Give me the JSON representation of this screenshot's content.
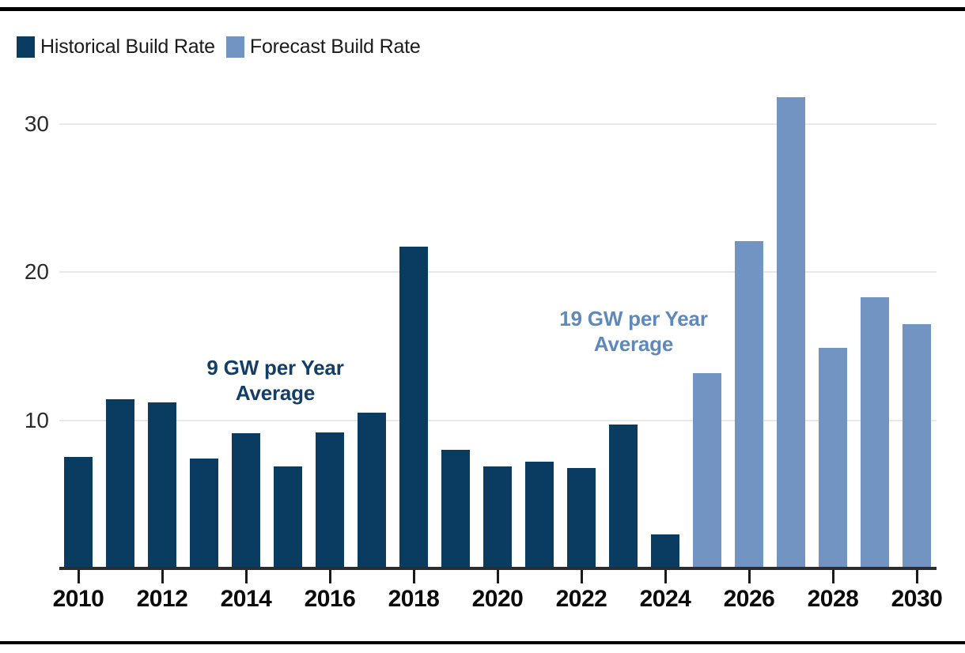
{
  "figure": {
    "background": "#ffffff",
    "rule_color": "#000000"
  },
  "legend": {
    "items": [
      {
        "label": "Historical Build Rate",
        "color": "#0a3c61"
      },
      {
        "label": "Forecast Build Rate",
        "color": "#7294c2"
      }
    ]
  },
  "chart_data": {
    "type": "bar",
    "title": "",
    "xlabel": "",
    "ylabel": "",
    "ylim": [
      0,
      33
    ],
    "yticks": [
      10,
      20,
      30
    ],
    "grid": "horizontal",
    "legend_position": "top-left",
    "categories": [
      2010,
      2011,
      2012,
      2013,
      2014,
      2015,
      2016,
      2017,
      2018,
      2019,
      2020,
      2021,
      2022,
      2023,
      2024,
      2025,
      2026,
      2027,
      2028,
      2029,
      2030
    ],
    "xtick_labels": [
      "2010",
      "2012",
      "2014",
      "2016",
      "2018",
      "2020",
      "2022",
      "2024",
      "2026",
      "2028",
      "2030"
    ],
    "series": [
      {
        "name": "Historical Build Rate",
        "color": "#0a3c61",
        "years": [
          2010,
          2011,
          2012,
          2013,
          2014,
          2015,
          2016,
          2017,
          2018,
          2019,
          2020,
          2021,
          2022,
          2023,
          2024
        ],
        "values": [
          7.5,
          11.4,
          11.2,
          7.4,
          9.1,
          6.9,
          9.2,
          10.5,
          21.7,
          8.0,
          6.9,
          7.2,
          6.8,
          9.7,
          2.3
        ]
      },
      {
        "name": "Forecast Build Rate",
        "color": "#7294c2",
        "years": [
          2025,
          2026,
          2027,
          2028,
          2029,
          2030
        ],
        "values": [
          13.2,
          22.1,
          31.8,
          14.9,
          18.3,
          16.5
        ]
      }
    ],
    "annotations": [
      {
        "lines": [
          "9 GW per Year",
          "Average"
        ],
        "color": "#133e66"
      },
      {
        "lines": [
          "19 GW per Year",
          "Average"
        ],
        "color": "#5f88bb"
      }
    ]
  }
}
